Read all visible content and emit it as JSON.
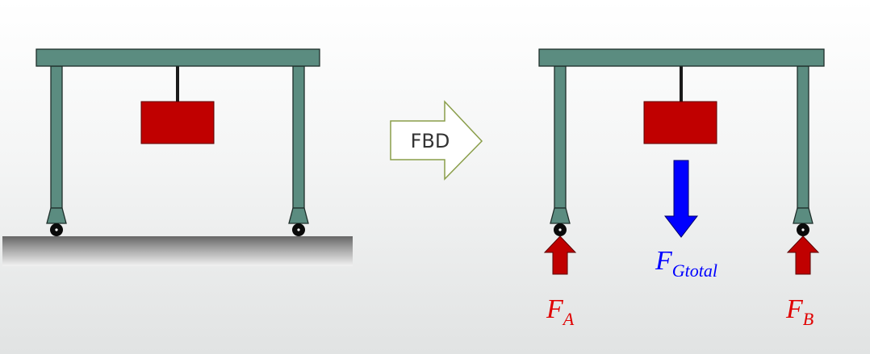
{
  "arrow_label": "FBD",
  "forces": {
    "left_support": {
      "symbol": "F",
      "subscript": "A"
    },
    "weight": {
      "symbol": "F",
      "subscript": "Gtotal"
    },
    "right_support": {
      "symbol": "F",
      "subscript": "B"
    }
  },
  "colors": {
    "frame": "#5b8c80",
    "frame_stroke": "#1e2e2a",
    "load": "#c00000",
    "reaction_arrow": "#c00000",
    "weight_arrow": "#0000ff",
    "support_label": "#e00000",
    "weight_label": "#0000ff"
  }
}
